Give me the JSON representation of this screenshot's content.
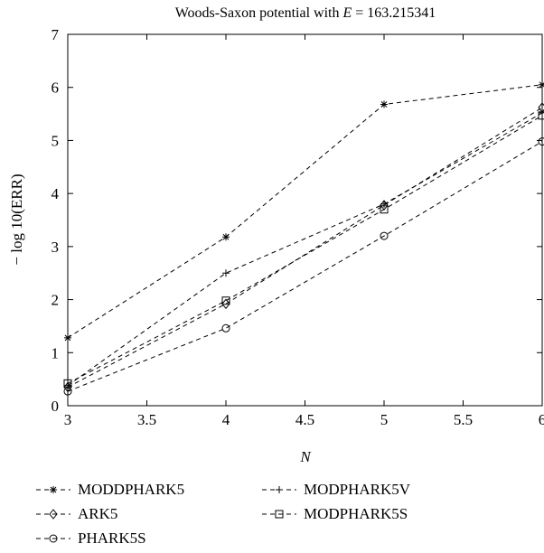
{
  "chart_data": {
    "type": "line",
    "title_prefix": "Woods-Saxon potential with ",
    "title_var": "E",
    "title_suffix": " = 163.215341",
    "xlabel": "N",
    "ylabel": "− log 10(ERR)",
    "xlim": [
      3,
      6
    ],
    "ylim": [
      0,
      7
    ],
    "xticks": [
      "3",
      "3.5",
      "4",
      "4.5",
      "5",
      "5.5",
      "6"
    ],
    "xtick_values": [
      3,
      3.5,
      4,
      4.5,
      5,
      5.5,
      6
    ],
    "yticks": [
      "0",
      "1",
      "2",
      "3",
      "4",
      "5",
      "6",
      "7"
    ],
    "ytick_values": [
      0,
      1,
      2,
      3,
      4,
      5,
      6,
      7
    ],
    "grid": false,
    "legend_placement": "below",
    "x": [
      3,
      4,
      5,
      6
    ],
    "series": [
      {
        "name": "MODDPHARK5",
        "marker": "asterisk",
        "values": [
          1.28,
          3.18,
          5.68,
          6.05
        ]
      },
      {
        "name": "ARK5",
        "marker": "diamond",
        "values": [
          0.35,
          1.92,
          3.78,
          5.62
        ]
      },
      {
        "name": "PHARK5S",
        "marker": "circle",
        "values": [
          0.27,
          1.46,
          3.2,
          4.98
        ]
      },
      {
        "name": "MODPHARK5V",
        "marker": "plus",
        "values": [
          0.38,
          2.5,
          3.8,
          5.52
        ]
      },
      {
        "name": "MODPHARK5S",
        "marker": "square",
        "values": [
          0.42,
          1.98,
          3.7,
          5.47
        ]
      }
    ]
  }
}
